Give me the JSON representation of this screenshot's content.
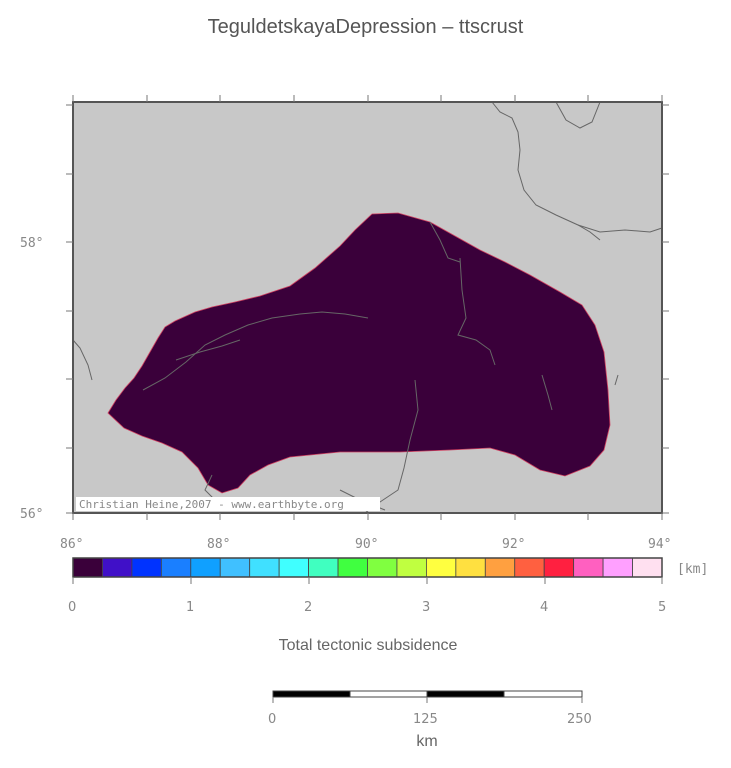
{
  "title": "TeguldetskayaDepression – ttscrust",
  "map": {
    "lat_labels": [
      "58°",
      "56°"
    ],
    "lon_labels": [
      "86°",
      "88°",
      "90°",
      "92°",
      "94°"
    ],
    "credit": "Christian Heine,2007 - www.earthbyte.org",
    "colors": {
      "land": "#c8c8c8",
      "basin": "#3a003a",
      "rivers": "#666666",
      "frame": "#555555"
    }
  },
  "colorbar": {
    "min": 0,
    "max": 5,
    "unit": "[km]",
    "tick_labels": [
      "0",
      "1",
      "2",
      "3",
      "4",
      "5"
    ],
    "label": "Total tectonic subsidence",
    "colors": [
      "#3a003a",
      "#4010c8",
      "#0033ff",
      "#1a7fff",
      "#10a0ff",
      "#40c0ff",
      "#40e0ff",
      "#40ffff",
      "#40ffc0",
      "#40ff40",
      "#80ff40",
      "#c0ff40",
      "#ffff40",
      "#ffe040",
      "#ffa040",
      "#ff6040",
      "#ff2040",
      "#ff60c0",
      "#ffa0ff",
      "#ffe0f0"
    ]
  },
  "scalebar": {
    "tick_labels": [
      "0",
      "125",
      "250"
    ],
    "unit": "km"
  }
}
